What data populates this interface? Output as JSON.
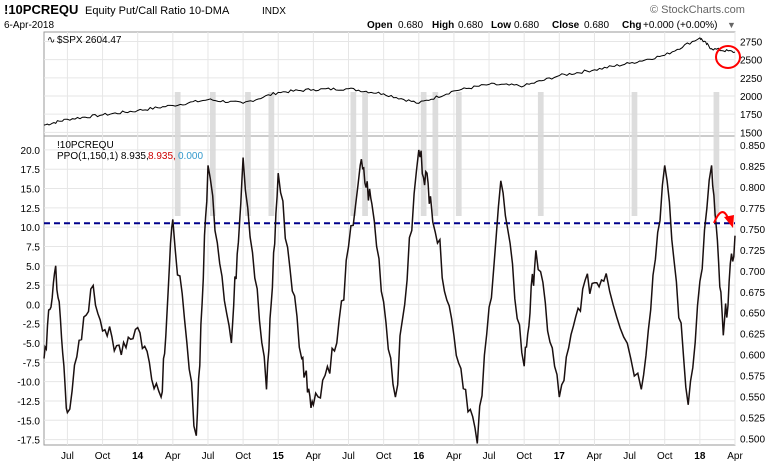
{
  "header": {
    "symbol": "!10PCREQU",
    "description": "Equity Put/Call Ratio 10-DMA",
    "exchange": "INDX",
    "date": "6-Apr-2018",
    "open_label": "Open",
    "open": "0.680",
    "high_label": "High",
    "high": "0.680",
    "low_label": "Low",
    "low": "0.680",
    "close_label": "Close",
    "close": "0.680",
    "chg_label": "Chg",
    "chg": "+0.000 (+0.00%)",
    "chg_arrow": "▼",
    "watermark": "© StockCharts.com"
  },
  "colors": {
    "price_line": "#000000",
    "ppo_line": "#1a1010",
    "highlight_band": "#d9d9d9",
    "reference_line": "#00008b",
    "annotation": "#ff0000",
    "ppo_value_red": "#cc0000",
    "ppo_value_blue": "#3399cc",
    "grid": "#e6e6e6"
  },
  "chart_data": [
    {
      "type": "line",
      "panel": "top",
      "legend_icon": "wave-icon",
      "legend": "$SPX 2604.47",
      "series": [
        {
          "name": "$SPX",
          "x": [
            "2013-05",
            "2013-07",
            "2013-10",
            "2014-01",
            "2014-04",
            "2014-07",
            "2014-10",
            "2015-01",
            "2015-04",
            "2015-07",
            "2015-10",
            "2016-01",
            "2016-04",
            "2016-07",
            "2016-10",
            "2017-01",
            "2017-04",
            "2017-07",
            "2017-10",
            "2018-01",
            "2018-02",
            "2018-04"
          ],
          "values": [
            1600,
            1680,
            1740,
            1800,
            1870,
            1950,
            1900,
            2050,
            2090,
            2100,
            2030,
            1900,
            2070,
            2160,
            2140,
            2280,
            2360,
            2450,
            2560,
            2800,
            2650,
            2604
          ]
        }
      ],
      "y_ticks": [
        1500,
        1750,
        2000,
        2250,
        2500,
        2750
      ],
      "ylim": [
        1450,
        2880
      ],
      "annotations": [
        "red circle around latest price"
      ]
    },
    {
      "type": "line",
      "panel": "bottom",
      "legend_title": "!10PCREQU",
      "legend": "PPO(1,150,1) 8.935,",
      "legend_value_red": "8.935,",
      "legend_value_blue": "0.000",
      "series": [
        {
          "name": "PPO(1,150,1)",
          "axis": "left",
          "x": [
            "2013-05",
            "2013-06",
            "2013-07",
            "2013-09",
            "2013-11",
            "2014-01",
            "2014-03",
            "2014-04",
            "2014-06",
            "2014-07",
            "2014-09",
            "2014-10",
            "2014-12",
            "2015-01",
            "2015-03",
            "2015-04",
            "2015-06",
            "2015-08",
            "2015-09",
            "2015-11",
            "2016-01",
            "2016-02",
            "2016-04",
            "2016-06",
            "2016-08",
            "2016-10",
            "2016-11",
            "2017-01",
            "2017-03",
            "2017-05",
            "2017-08",
            "2017-10",
            "2017-12",
            "2018-02",
            "2018-03",
            "2018-04"
          ],
          "values": [
            -7,
            5,
            -14,
            2,
            -6,
            -3,
            -12,
            11,
            -17,
            18,
            -5,
            19,
            -11,
            17,
            -7,
            -13,
            -5,
            18,
            13,
            -12,
            20,
            14,
            -4,
            -18,
            16,
            -8,
            7,
            -12,
            2,
            4,
            -11,
            18,
            -13,
            18,
            -4,
            8.9
          ]
        }
      ],
      "y_ticks_left": [
        -17.5,
        -15.0,
        -12.5,
        -10.0,
        -7.5,
        -5.0,
        -2.5,
        0.0,
        2.5,
        5.0,
        7.5,
        10.0,
        12.5,
        15.0,
        17.5,
        20.0
      ],
      "ylim_left": [
        -18.2,
        21.8
      ],
      "y_ticks_right": [
        0.5,
        0.525,
        0.55,
        0.575,
        0.6,
        0.625,
        0.65,
        0.675,
        0.7,
        0.725,
        0.75,
        0.775,
        0.8,
        0.825,
        0.85
      ],
      "reference_line_value": 10.5,
      "highlight_periods": [
        [
          "2014-04",
          "2014-05"
        ],
        [
          "2014-07",
          "2014-08"
        ],
        [
          "2014-10",
          "2014-11"
        ],
        [
          "2014-12",
          "2015-01"
        ],
        [
          "2015-07",
          "2015-08"
        ],
        [
          "2015-08",
          "2015-09"
        ],
        [
          "2016-01",
          "2016-02"
        ],
        [
          "2016-02",
          "2016-03"
        ],
        [
          "2016-04",
          "2016-05"
        ],
        [
          "2016-11",
          "2016-12"
        ],
        [
          "2017-07",
          "2017-08"
        ],
        [
          "2018-02",
          "2018-03"
        ]
      ],
      "annotations": [
        "red curved arrow pointing down at latest value"
      ]
    }
  ],
  "x_axis": {
    "ticks": [
      {
        "label": "Jul",
        "date": "2013-07"
      },
      {
        "label": "Oct",
        "date": "2013-10"
      },
      {
        "label": "14",
        "date": "2014-01",
        "bold": true
      },
      {
        "label": "Apr",
        "date": "2014-04"
      },
      {
        "label": "Jul",
        "date": "2014-07"
      },
      {
        "label": "Oct",
        "date": "2014-10"
      },
      {
        "label": "15",
        "date": "2015-01",
        "bold": true
      },
      {
        "label": "Apr",
        "date": "2015-04"
      },
      {
        "label": "Jul",
        "date": "2015-07"
      },
      {
        "label": "Oct",
        "date": "2015-10"
      },
      {
        "label": "16",
        "date": "2016-01",
        "bold": true
      },
      {
        "label": "Apr",
        "date": "2016-04"
      },
      {
        "label": "Jul",
        "date": "2016-07"
      },
      {
        "label": "Oct",
        "date": "2016-10"
      },
      {
        "label": "17",
        "date": "2017-01",
        "bold": true
      },
      {
        "label": "Apr",
        "date": "2017-04"
      },
      {
        "label": "Jul",
        "date": "2017-07"
      },
      {
        "label": "Oct",
        "date": "2017-10"
      },
      {
        "label": "18",
        "date": "2018-01",
        "bold": true
      },
      {
        "label": "Apr",
        "date": "2018-04"
      }
    ],
    "range": [
      "2013-05",
      "2018-04"
    ]
  }
}
